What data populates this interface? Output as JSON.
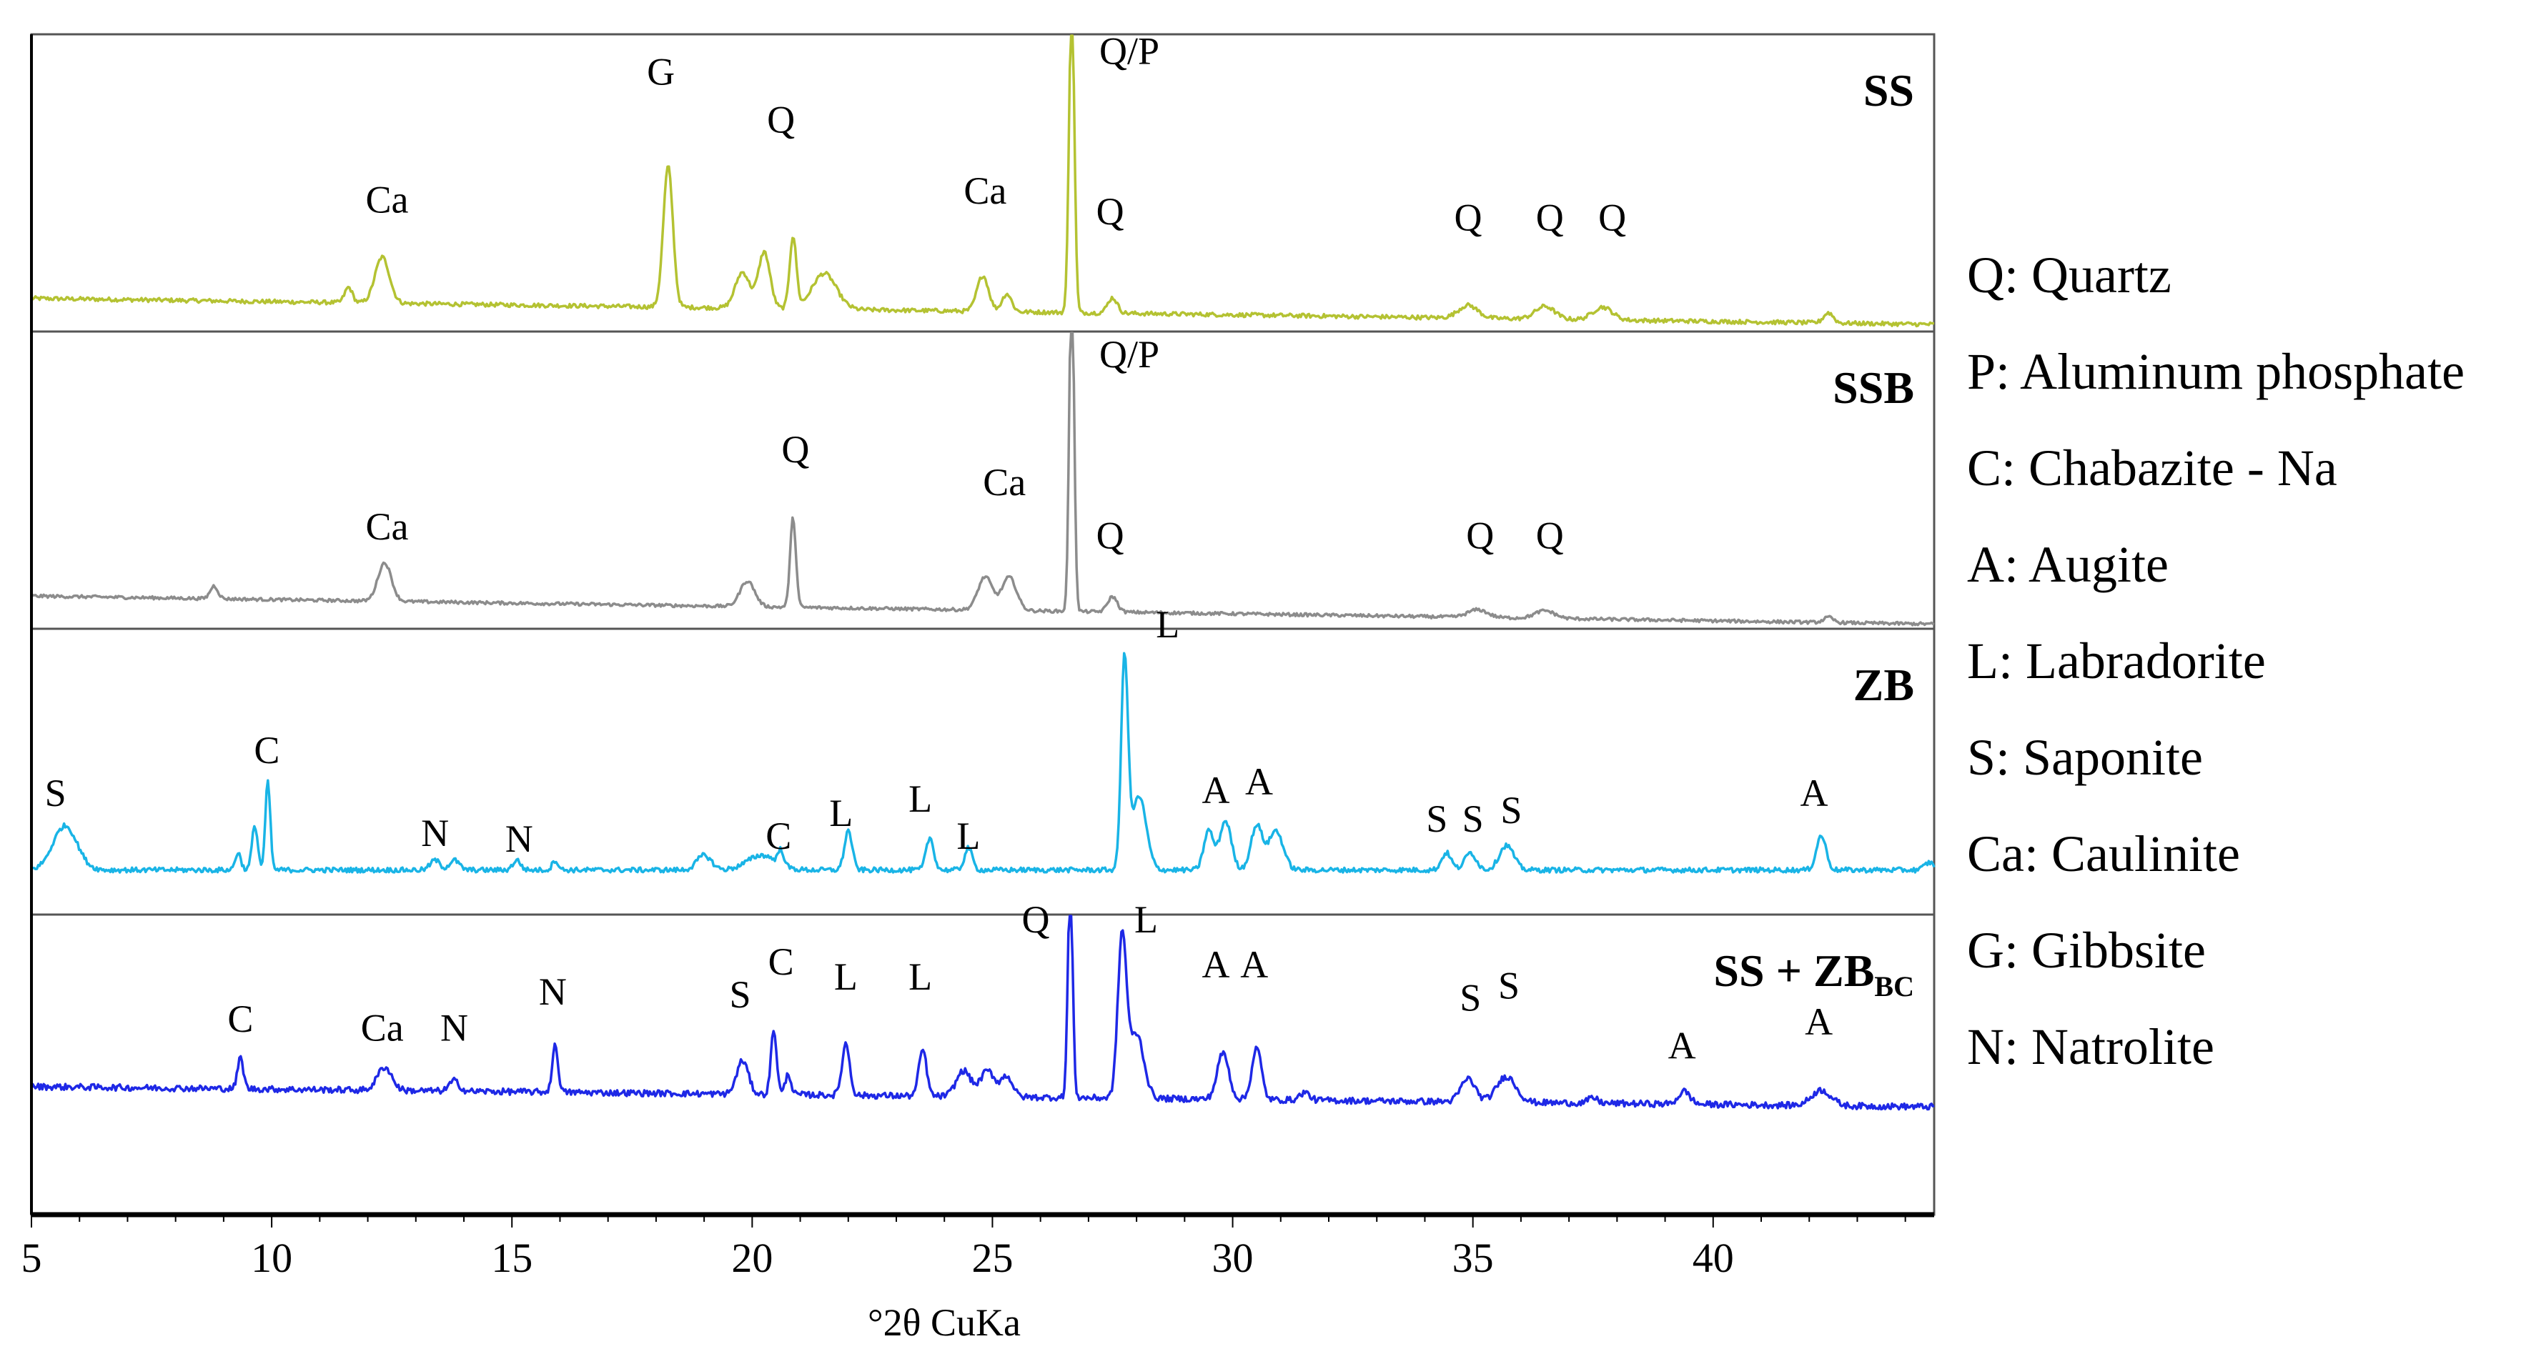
{
  "chart_data": {
    "type": "line",
    "xlabel": "°2θ CuKa",
    "xlim": [
      5,
      44.6
    ],
    "xticks": [
      5,
      10,
      15,
      20,
      25,
      30,
      35,
      40
    ],
    "grid": false,
    "legend_position": "right",
    "panels": [
      {
        "label": "SS",
        "label_sub": "",
        "color": "#b4c232",
        "baseline": 0.06,
        "slope": -0.00065,
        "noise": 0.008,
        "peaks": [
          {
            "x": 11.6,
            "h": 0.06,
            "w": 0.08
          },
          {
            "x": 12.3,
            "h": 0.18,
            "w": 0.15
          },
          {
            "x": 18.25,
            "h": 0.55,
            "w": 0.1
          },
          {
            "x": 19.8,
            "h": 0.14,
            "w": 0.15
          },
          {
            "x": 20.25,
            "h": 0.22,
            "w": 0.12
          },
          {
            "x": 20.85,
            "h": 0.28,
            "w": 0.07
          },
          {
            "x": 21.5,
            "h": 0.14,
            "w": 0.25
          },
          {
            "x": 24.8,
            "h": 0.14,
            "w": 0.12
          },
          {
            "x": 25.3,
            "h": 0.07,
            "w": 0.1
          },
          {
            "x": 26.65,
            "h": 1.25,
            "w": 0.055
          },
          {
            "x": 27.5,
            "h": 0.06,
            "w": 0.1
          },
          {
            "x": 34.9,
            "h": 0.05,
            "w": 0.2
          },
          {
            "x": 36.5,
            "h": 0.05,
            "w": 0.2
          },
          {
            "x": 37.7,
            "h": 0.05,
            "w": 0.2
          },
          {
            "x": 42.4,
            "h": 0.04,
            "w": 0.1
          }
        ],
        "annotations": [
          {
            "text": "Ca",
            "x": 12.4,
            "y": 0.4
          },
          {
            "text": "G",
            "x": 18.1,
            "y": 0.83
          },
          {
            "text": "Q",
            "x": 20.6,
            "y": 0.67
          },
          {
            "text": "Ca",
            "x": 24.85,
            "y": 0.43
          },
          {
            "text": "Q/P",
            "x": 27.85,
            "y": 0.9
          },
          {
            "text": "Q",
            "x": 27.45,
            "y": 0.36
          },
          {
            "text": "Q",
            "x": 34.9,
            "y": 0.34
          },
          {
            "text": "Q",
            "x": 36.6,
            "y": 0.34
          },
          {
            "text": "Q",
            "x": 37.9,
            "y": 0.34
          }
        ]
      },
      {
        "label": "SSB",
        "label_sub": "",
        "color": "#8c8c8c",
        "baseline": 0.07,
        "slope": -0.0007,
        "noise": 0.006,
        "peaks": [
          {
            "x": 8.8,
            "h": 0.05,
            "w": 0.08
          },
          {
            "x": 12.35,
            "h": 0.15,
            "w": 0.14
          },
          {
            "x": 19.9,
            "h": 0.1,
            "w": 0.15
          },
          {
            "x": 20.85,
            "h": 0.35,
            "w": 0.06
          },
          {
            "x": 24.85,
            "h": 0.13,
            "w": 0.15
          },
          {
            "x": 25.35,
            "h": 0.13,
            "w": 0.15
          },
          {
            "x": 26.65,
            "h": 1.35,
            "w": 0.05
          },
          {
            "x": 27.5,
            "h": 0.06,
            "w": 0.1
          },
          {
            "x": 35.1,
            "h": 0.03,
            "w": 0.2
          },
          {
            "x": 36.5,
            "h": 0.03,
            "w": 0.2
          },
          {
            "x": 42.4,
            "h": 0.02,
            "w": 0.1
          }
        ],
        "annotations": [
          {
            "text": "Ca",
            "x": 12.4,
            "y": 0.3
          },
          {
            "text": "Q",
            "x": 20.9,
            "y": 0.56
          },
          {
            "text": "Ca",
            "x": 25.25,
            "y": 0.45
          },
          {
            "text": "Q/P",
            "x": 27.85,
            "y": 0.88
          },
          {
            "text": "Q",
            "x": 27.45,
            "y": 0.27
          },
          {
            "text": "Q",
            "x": 35.15,
            "y": 0.27
          },
          {
            "text": "Q",
            "x": 36.6,
            "y": 0.27
          }
        ]
      },
      {
        "label": "ZB",
        "label_sub": "",
        "color": "#19b4e6",
        "baseline": 0.1,
        "slope": 0,
        "noise": 0.01,
        "peaks": [
          {
            "x": 5.7,
            "h": 0.18,
            "w": 0.25
          },
          {
            "x": 9.3,
            "h": 0.07,
            "w": 0.06
          },
          {
            "x": 9.65,
            "h": 0.18,
            "w": 0.06
          },
          {
            "x": 9.92,
            "h": 0.36,
            "w": 0.05
          },
          {
            "x": 13.4,
            "h": 0.04,
            "w": 0.1
          },
          {
            "x": 13.8,
            "h": 0.04,
            "w": 0.1
          },
          {
            "x": 15.1,
            "h": 0.04,
            "w": 0.08
          },
          {
            "x": 15.9,
            "h": 0.04,
            "w": 0.06
          },
          {
            "x": 19.0,
            "h": 0.06,
            "w": 0.15
          },
          {
            "x": 20.2,
            "h": 0.06,
            "w": 0.3
          },
          {
            "x": 20.6,
            "h": 0.06,
            "w": 0.06
          },
          {
            "x": 22.0,
            "h": 0.16,
            "w": 0.08
          },
          {
            "x": 23.7,
            "h": 0.13,
            "w": 0.08
          },
          {
            "x": 24.5,
            "h": 0.09,
            "w": 0.08
          },
          {
            "x": 27.75,
            "h": 0.85,
            "w": 0.07
          },
          {
            "x": 28.05,
            "h": 0.3,
            "w": 0.15
          },
          {
            "x": 29.5,
            "h": 0.16,
            "w": 0.1
          },
          {
            "x": 29.85,
            "h": 0.2,
            "w": 0.12
          },
          {
            "x": 30.5,
            "h": 0.18,
            "w": 0.12
          },
          {
            "x": 30.9,
            "h": 0.16,
            "w": 0.15
          },
          {
            "x": 34.45,
            "h": 0.07,
            "w": 0.1
          },
          {
            "x": 34.95,
            "h": 0.07,
            "w": 0.12
          },
          {
            "x": 35.7,
            "h": 0.1,
            "w": 0.15
          },
          {
            "x": 42.25,
            "h": 0.14,
            "w": 0.1
          },
          {
            "x": 44.5,
            "h": 0.03,
            "w": 0.1
          }
        ],
        "annotations": [
          {
            "text": "S",
            "x": 5.5,
            "y": 0.38
          },
          {
            "text": "C",
            "x": 9.9,
            "y": 0.53
          },
          {
            "text": "N",
            "x": 13.4,
            "y": 0.24
          },
          {
            "text": "N",
            "x": 15.15,
            "y": 0.22
          },
          {
            "text": "C",
            "x": 20.55,
            "y": 0.23
          },
          {
            "text": "L",
            "x": 21.85,
            "y": 0.31
          },
          {
            "text": "L",
            "x": 23.5,
            "y": 0.36
          },
          {
            "text": "L",
            "x": 24.5,
            "y": 0.23
          },
          {
            "text": "L",
            "x": 28.65,
            "y": 0.97
          },
          {
            "text": "A",
            "x": 29.65,
            "y": 0.39
          },
          {
            "text": "A",
            "x": 30.55,
            "y": 0.42
          },
          {
            "text": "S",
            "x": 34.25,
            "y": 0.29
          },
          {
            "text": "S",
            "x": 35.0,
            "y": 0.29
          },
          {
            "text": "S",
            "x": 35.8,
            "y": 0.32
          },
          {
            "text": "A",
            "x": 42.1,
            "y": 0.38
          }
        ]
      },
      {
        "label": "SS + ZB",
        "label_sub": "BC",
        "color": "#1e28e6",
        "baseline": 0.38,
        "slope": -0.0005,
        "noise": 0.012,
        "peaks": [
          {
            "x": 9.35,
            "h": 0.12,
            "w": 0.06
          },
          {
            "x": 12.35,
            "h": 0.09,
            "w": 0.15
          },
          {
            "x": 13.8,
            "h": 0.04,
            "w": 0.1
          },
          {
            "x": 15.9,
            "h": 0.18,
            "w": 0.06
          },
          {
            "x": 19.8,
            "h": 0.13,
            "w": 0.12
          },
          {
            "x": 20.45,
            "h": 0.25,
            "w": 0.06
          },
          {
            "x": 20.75,
            "h": 0.08,
            "w": 0.06
          },
          {
            "x": 21.95,
            "h": 0.2,
            "w": 0.08
          },
          {
            "x": 23.55,
            "h": 0.18,
            "w": 0.08
          },
          {
            "x": 24.4,
            "h": 0.1,
            "w": 0.15
          },
          {
            "x": 24.9,
            "h": 0.1,
            "w": 0.15
          },
          {
            "x": 25.3,
            "h": 0.08,
            "w": 0.12
          },
          {
            "x": 26.62,
            "h": 0.85,
            "w": 0.05
          },
          {
            "x": 27.7,
            "h": 0.62,
            "w": 0.09
          },
          {
            "x": 28.0,
            "h": 0.25,
            "w": 0.15
          },
          {
            "x": 29.8,
            "h": 0.18,
            "w": 0.12
          },
          {
            "x": 30.5,
            "h": 0.2,
            "w": 0.1
          },
          {
            "x": 31.5,
            "h": 0.03,
            "w": 0.1
          },
          {
            "x": 34.9,
            "h": 0.09,
            "w": 0.15
          },
          {
            "x": 35.7,
            "h": 0.1,
            "w": 0.2
          },
          {
            "x": 37.5,
            "h": 0.02,
            "w": 0.1
          },
          {
            "x": 39.4,
            "h": 0.05,
            "w": 0.12
          },
          {
            "x": 42.25,
            "h": 0.06,
            "w": 0.2
          }
        ],
        "annotations": [
          {
            "text": "C",
            "x": 9.35,
            "y": 0.61
          },
          {
            "text": "Ca",
            "x": 12.3,
            "y": 0.58
          },
          {
            "text": "N",
            "x": 13.8,
            "y": 0.58
          },
          {
            "text": "N",
            "x": 15.85,
            "y": 0.7
          },
          {
            "text": "S",
            "x": 19.75,
            "y": 0.69
          },
          {
            "text": "C",
            "x": 20.6,
            "y": 0.8
          },
          {
            "text": "L",
            "x": 21.95,
            "y": 0.75
          },
          {
            "text": "L",
            "x": 23.5,
            "y": 0.75
          },
          {
            "text": "Q",
            "x": 25.9,
            "y": 0.94
          },
          {
            "text": "L",
            "x": 28.2,
            "y": 0.94
          },
          {
            "text": "A",
            "x": 29.65,
            "y": 0.79
          },
          {
            "text": "A",
            "x": 30.45,
            "y": 0.79
          },
          {
            "text": "S",
            "x": 34.95,
            "y": 0.68
          },
          {
            "text": "S",
            "x": 35.75,
            "y": 0.72
          },
          {
            "text": "A",
            "x": 39.35,
            "y": 0.52
          },
          {
            "text": "A",
            "x": 42.2,
            "y": 0.6
          }
        ]
      }
    ]
  },
  "legend": [
    "Q: Quartz",
    "P: Aluminum phosphate",
    "C: Chabazite - Na",
    "A: Augite",
    "L: Labradorite",
    "S: Saponite",
    "Ca: Caulinite",
    "G: Gibbsite",
    "N: Natrolite"
  ]
}
